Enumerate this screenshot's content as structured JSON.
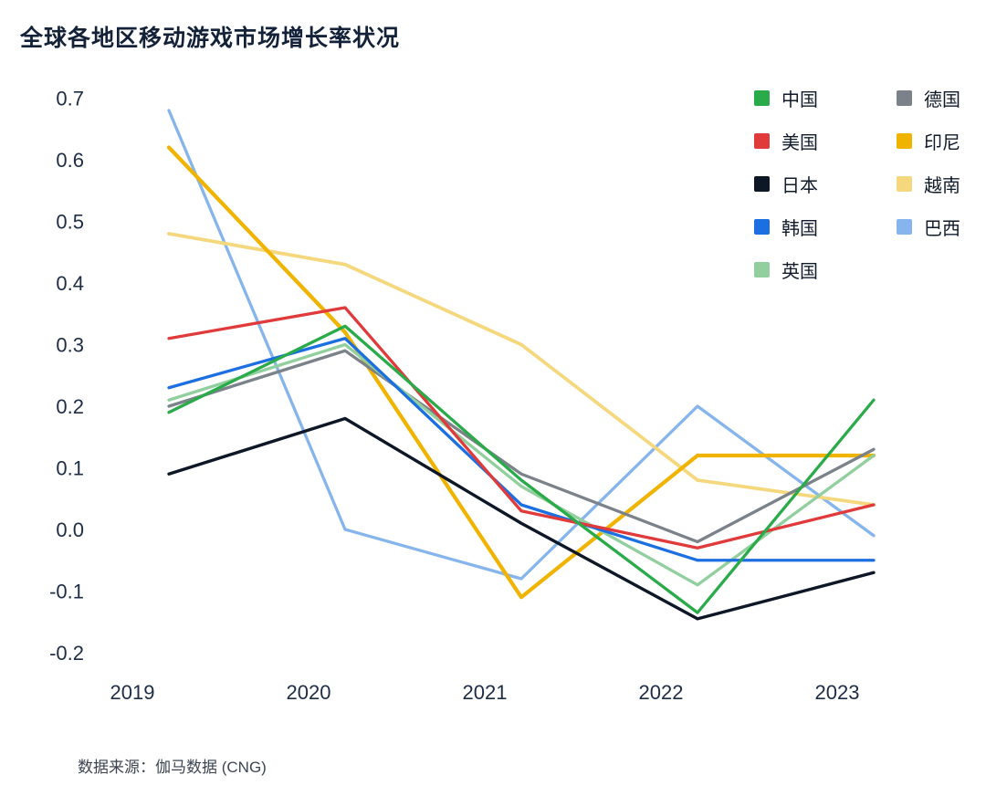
{
  "title": "全球各地区移动游戏市场增长率状况",
  "source_note": "数据来源：伽马数据 (CNG)",
  "chart_data": {
    "type": "line",
    "x": [
      "2019",
      "2020",
      "2021",
      "2022",
      "2023"
    ],
    "ylim": [
      -0.2,
      0.7
    ],
    "yticks": [
      0.7,
      0.6,
      0.5,
      0.4,
      0.3,
      0.2,
      0.1,
      0.0,
      -0.1,
      -0.2
    ],
    "grid": false,
    "legend_position": "top-right",
    "legend_columns": [
      [
        "中国",
        "美国",
        "日本",
        "韩国",
        "英国"
      ],
      [
        "德国",
        "印尼",
        "越南",
        "巴西"
      ]
    ],
    "series": [
      {
        "id": "china",
        "name": "中国",
        "color": "#2aab4a",
        "values": [
          0.19,
          0.33,
          0.08,
          -0.135,
          0.21
        ]
      },
      {
        "id": "usa",
        "name": "美国",
        "color": "#e03a3a",
        "values": [
          0.31,
          0.36,
          0.03,
          -0.03,
          0.04
        ]
      },
      {
        "id": "japan",
        "name": "日本",
        "color": "#0d1726",
        "values": [
          0.09,
          0.18,
          0.01,
          -0.145,
          -0.07
        ]
      },
      {
        "id": "korea",
        "name": "韩国",
        "color": "#1c6fe0",
        "values": [
          0.23,
          0.31,
          0.04,
          -0.05,
          -0.05
        ]
      },
      {
        "id": "uk",
        "name": "英国",
        "color": "#92cf9e",
        "values": [
          0.21,
          0.3,
          0.07,
          -0.09,
          0.12
        ]
      },
      {
        "id": "germany",
        "name": "德国",
        "color": "#7c8289",
        "values": [
          0.2,
          0.29,
          0.09,
          -0.02,
          0.13
        ]
      },
      {
        "id": "indonesia",
        "name": "印尼",
        "color": "#f0b400",
        "values": [
          0.62,
          0.32,
          -0.11,
          0.12,
          0.12
        ]
      },
      {
        "id": "vietnam",
        "name": "越南",
        "color": "#f5d87e",
        "values": [
          0.48,
          0.43,
          0.3,
          0.08,
          0.04
        ]
      },
      {
        "id": "brazil",
        "name": "巴西",
        "color": "#85b5ec",
        "values": [
          0.68,
          0.0,
          -0.08,
          0.2,
          -0.01
        ]
      }
    ]
  }
}
